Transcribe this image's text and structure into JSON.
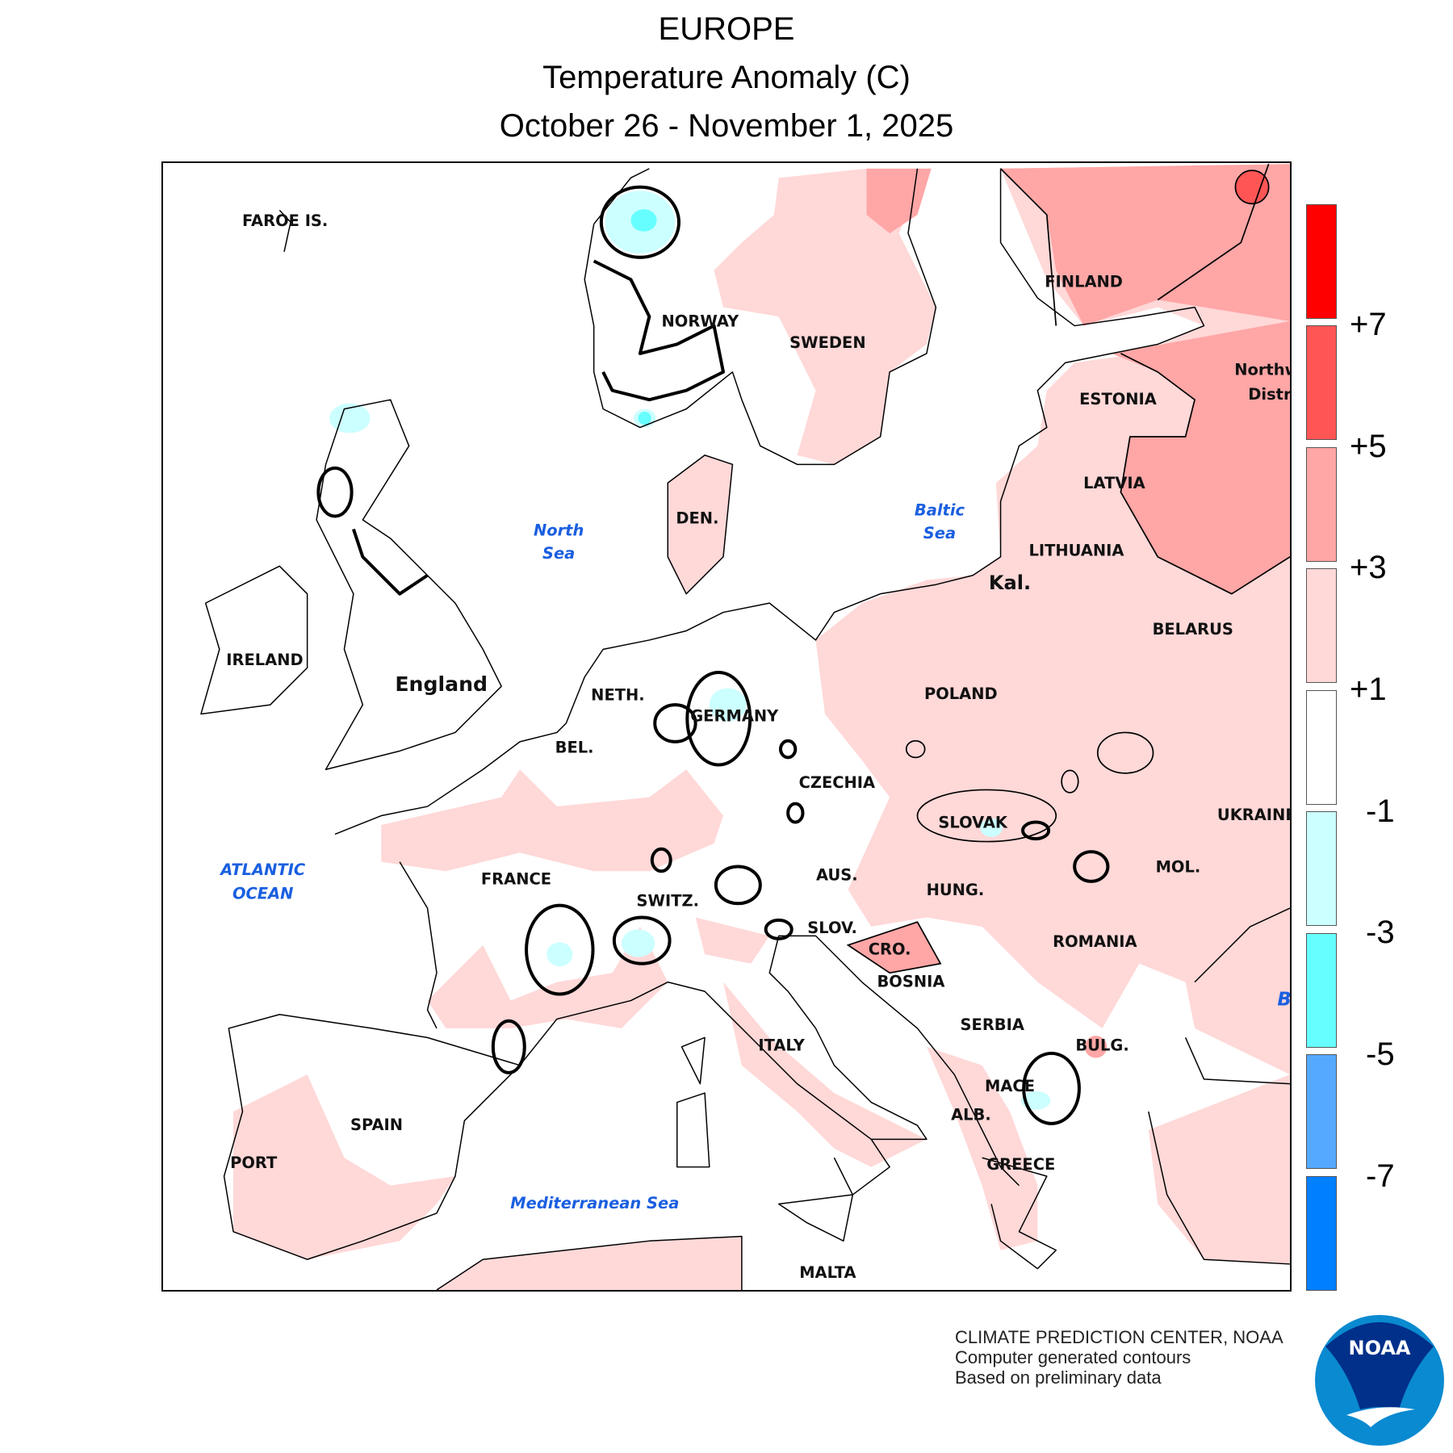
{
  "title": {
    "line1": "EUROPE",
    "line2": "Temperature Anomaly (C)",
    "line3": "October 26 - November 1, 2025"
  },
  "legend": {
    "bins": [
      {
        "range": "> +7",
        "color": "#ff0000"
      },
      {
        "range": "+5 to +7",
        "color": "#ff5555"
      },
      {
        "range": "+3 to +5",
        "color": "#ffa6a6"
      },
      {
        "range": "+1 to +3",
        "color": "#ffd8d8"
      },
      {
        "range": "-1 to +1",
        "color": "#ffffff"
      },
      {
        "range": "-3 to -1",
        "color": "#ccffff"
      },
      {
        "range": "-5 to -3",
        "color": "#66ffff"
      },
      {
        "range": "-7 to -5",
        "color": "#55aaff"
      },
      {
        "range": "< -7",
        "color": "#0080ff"
      }
    ],
    "labels": [
      "+7",
      "+5",
      "+3",
      "+1",
      "-1",
      "-3",
      "-5",
      "-7"
    ]
  },
  "map": {
    "labels": {
      "faroe": "FAROE IS.",
      "norway": "NORWAY",
      "sweden": "SWEDEN",
      "finland": "FINLAND",
      "estonia": "ESTONIA",
      "latvia": "LATVIA",
      "lithuania": "LITHUANIA",
      "kal": "Kal.",
      "belarus": "BELARUS",
      "poland": "POLAND",
      "ukraine": "UKRAINE",
      "northw": "Northw",
      "distri": "Distri",
      "den": "DEN.",
      "ireland": "IRELAND",
      "england": "England",
      "neth": "NETH.",
      "germany": "GERMANY",
      "bel": "BEL.",
      "czechia": "CZECHIA",
      "slovak": "SLOVAK",
      "mol": "MOL.",
      "france": "FRANCE",
      "aus": "AUS.",
      "hung": "HUNG.",
      "switz": "SWITZ.",
      "slov": "SLOV.",
      "romania": "ROMANIA",
      "cro": "CRO.",
      "bosnia": "BOSNIA",
      "serbia": "SERBIA",
      "italy": "ITALY",
      "bulg": "BULG.",
      "mace": "MACE",
      "alb": "ALB.",
      "spain": "SPAIN",
      "port": "PORT",
      "greece": "GREECE",
      "malta": "MALTA"
    },
    "seas": {
      "north_sea_1": "North",
      "north_sea_2": "Sea",
      "baltic_1": "Baltic",
      "baltic_2": "Sea",
      "atlantic_1": "ATLANTIC",
      "atlantic_2": "OCEAN",
      "mediterranean": "Mediterranean Sea",
      "black_sea_partial": "B"
    }
  },
  "footer": {
    "line1": "CLIMATE PREDICTION CENTER, NOAA",
    "line2": "Computer generated contours",
    "line3": "Based on preliminary data"
  },
  "logo": {
    "text": "NOAA",
    "dark": "#00308a",
    "light": "#0a8ad0"
  }
}
